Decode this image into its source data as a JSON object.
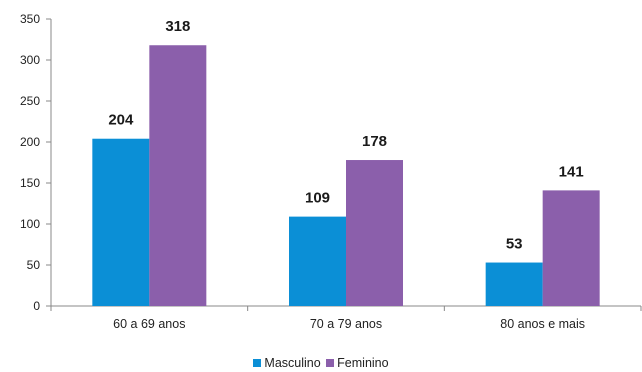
{
  "chart_data": {
    "type": "bar",
    "categories": [
      "60 a 69 anos",
      "70 a 79 anos",
      "80 anos e mais"
    ],
    "series": [
      {
        "name": "Masculino",
        "values": [
          204,
          109,
          53
        ],
        "color": "#0b8fd6"
      },
      {
        "name": "Feminino",
        "values": [
          318,
          178,
          141
        ],
        "color": "#8b5fab"
      }
    ],
    "title": "",
    "xlabel": "",
    "ylabel": "",
    "ylim": [
      0,
      350
    ],
    "yticks": [
      "0",
      "50",
      "100",
      "150",
      "200",
      "250",
      "300",
      "350"
    ],
    "data_labels": true,
    "grid": false,
    "legend_position": "bottom"
  }
}
